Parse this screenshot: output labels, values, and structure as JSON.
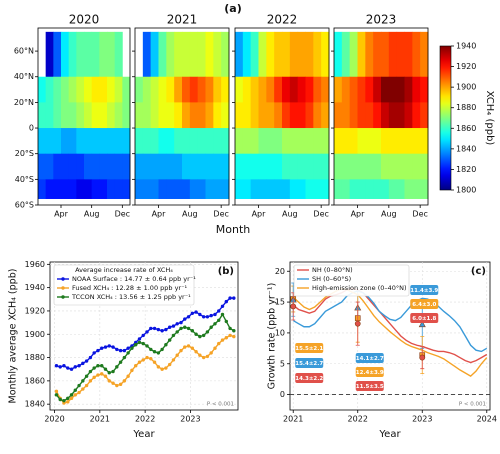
{
  "chart_data": [
    {
      "type": "heatmap",
      "title": "(a)",
      "x_label": "Month",
      "colormap": "jet",
      "x_edges": [
        1,
        2,
        3,
        4,
        5,
        6,
        7,
        8,
        9,
        10,
        11,
        12,
        13
      ],
      "y_edges": [
        75,
        40,
        20,
        0,
        -20,
        -40,
        -55
      ],
      "xlim": [
        1,
        13
      ],
      "ylim": [
        -60,
        78
      ],
      "xticks": [
        {
          "value": 4,
          "label": "Apr"
        },
        {
          "value": 8,
          "label": "Aug"
        },
        {
          "value": 12,
          "label": "Dec"
        }
      ],
      "yticks": [
        {
          "value": 60,
          "label": "60°N"
        },
        {
          "value": 40,
          "label": "40°N"
        },
        {
          "value": 20,
          "label": "20°N"
        },
        {
          "value": 0,
          "label": "0"
        },
        {
          "value": -20,
          "label": "20°S"
        },
        {
          "value": -40,
          "label": "40°S"
        },
        {
          "value": -60,
          "label": "60°S"
        }
      ],
      "clim": [
        1800,
        1940
      ],
      "cticks": [
        1800,
        1820,
        1840,
        1860,
        1880,
        1900,
        1920,
        1940
      ],
      "colorbar_label": "XCH₄ (ppb)",
      "panels": [
        {
          "title": "2020",
          "values": [
            [
              null,
              1810,
              1830,
              1850,
              1860,
              1865,
              1865,
              1865,
              1870,
              1870,
              1865,
              null
            ],
            [
              1855,
              1860,
              1865,
              1870,
              1875,
              1880,
              1885,
              1890,
              1890,
              1885,
              1880,
              1870
            ],
            [
              1860,
              1860,
              1865,
              1870,
              1870,
              1875,
              1880,
              1885,
              1885,
              1880,
              1875,
              1870
            ],
            [
              1845,
              1845,
              1845,
              1840,
              1840,
              1845,
              1845,
              1845,
              1845,
              1845,
              1845,
              1845
            ],
            [
              1830,
              1830,
              1825,
              1825,
              1825,
              1825,
              1830,
              1830,
              1830,
              1830,
              1830,
              1830
            ],
            [
              1825,
              1820,
              1820,
              1820,
              1820,
              1815,
              1815,
              1820,
              1820,
              1825,
              1825,
              1825
            ]
          ]
        },
        {
          "title": "2021",
          "values": [
            [
              null,
              1830,
              1845,
              1865,
              1875,
              1880,
              1880,
              1880,
              1880,
              1885,
              1880,
              1875
            ],
            [
              1870,
              1875,
              1880,
              1885,
              1890,
              1900,
              1910,
              1915,
              1910,
              1905,
              1895,
              1890
            ],
            [
              1875,
              1875,
              1880,
              1885,
              1885,
              1890,
              1900,
              1905,
              1905,
              1900,
              1890,
              1885
            ],
            [
              1860,
              1860,
              1860,
              1855,
              1855,
              1860,
              1860,
              1860,
              1860,
              1860,
              1860,
              1860
            ],
            [
              1840,
              1840,
              1840,
              1840,
              1840,
              1840,
              1845,
              1845,
              1845,
              1845,
              1845,
              1845
            ],
            [
              1835,
              1835,
              1835,
              1830,
              1830,
              1830,
              1830,
              1835,
              1835,
              1840,
              1840,
              1840
            ]
          ]
        },
        {
          "title": "2022",
          "values": [
            [
              1840,
              1850,
              1860,
              1880,
              1890,
              1895,
              1895,
              1900,
              1900,
              1900,
              1895,
              1890
            ],
            [
              1885,
              1890,
              1895,
              1900,
              1905,
              1915,
              1925,
              1930,
              1925,
              1920,
              1910,
              1905
            ],
            [
              1890,
              1890,
              1895,
              1900,
              1900,
              1905,
              1915,
              1920,
              1920,
              1915,
              1905,
              1900
            ],
            [
              1875,
              1875,
              1875,
              1870,
              1870,
              1870,
              1875,
              1875,
              1875,
              1875,
              1875,
              1875
            ],
            [
              1855,
              1855,
              1855,
              1855,
              1855,
              1855,
              1860,
              1860,
              1860,
              1860,
              1860,
              1860
            ],
            [
              1850,
              1850,
              1845,
              1845,
              1845,
              1845,
              1845,
              1850,
              1850,
              1855,
              1855,
              1855
            ]
          ]
        },
        {
          "title": "2023",
          "values": [
            [
              1855,
              1865,
              1875,
              1895,
              1905,
              1910,
              1910,
              1915,
              1915,
              1915,
              1910,
              1905
            ],
            [
              1900,
              1905,
              1910,
              1915,
              1920,
              1930,
              1940,
              1940,
              1940,
              1935,
              1925,
              1920
            ],
            [
              1905,
              1905,
              1910,
              1915,
              1915,
              1920,
              1930,
              1935,
              1935,
              1930,
              1920,
              1915
            ],
            [
              1890,
              1890,
              1890,
              1885,
              1885,
              1885,
              1890,
              1890,
              1890,
              1890,
              1890,
              1890
            ],
            [
              1870,
              1870,
              1870,
              1870,
              1870,
              1870,
              1875,
              1875,
              1875,
              1875,
              1875,
              1875
            ],
            [
              1865,
              1865,
              1860,
              1860,
              1860,
              1860,
              1860,
              1865,
              1865,
              1870,
              1870,
              1870
            ]
          ]
        }
      ]
    },
    {
      "type": "line",
      "title": "(b)",
      "x_label": "Year",
      "y_label": "Monthly average XCH₄ (ppb)",
      "legend_title": "Average increase rate of XCH₄",
      "annotation": "P < 0.001",
      "grid": true,
      "xlim": [
        2019.9,
        2024.05
      ],
      "ylim": [
        1835,
        1962
      ],
      "xticks": [
        2020,
        2021,
        2022,
        2023
      ],
      "yticks": [
        1840,
        1860,
        1880,
        1900,
        1920,
        1940,
        1960
      ],
      "x": [
        2020.042,
        2020.125,
        2020.208,
        2020.292,
        2020.375,
        2020.458,
        2020.542,
        2020.625,
        2020.708,
        2020.792,
        2020.875,
        2020.958,
        2021.042,
        2021.125,
        2021.208,
        2021.292,
        2021.375,
        2021.458,
        2021.542,
        2021.625,
        2021.708,
        2021.792,
        2021.875,
        2021.958,
        2022.042,
        2022.125,
        2022.208,
        2022.292,
        2022.375,
        2022.458,
        2022.542,
        2022.625,
        2022.708,
        2022.792,
        2022.875,
        2022.958,
        2023.042,
        2023.125,
        2023.208,
        2023.292,
        2023.375,
        2023.458,
        2023.542,
        2023.625,
        2023.708,
        2023.792,
        2023.875,
        2023.958
      ],
      "series": [
        {
          "name": "NOAA Surface : 14.77 ± 0.64 ppb yr⁻¹",
          "color": "#0a14e0",
          "marker": "o",
          "values": [
            1873,
            1872,
            1873,
            1871,
            1870,
            1872,
            1873,
            1875,
            1877,
            1880,
            1884,
            1886,
            1888,
            1889,
            1890,
            1889,
            1887,
            1886,
            1886,
            1888,
            1890,
            1893,
            1896,
            1899,
            1902,
            1905,
            1905,
            1904,
            1903,
            1904,
            1906,
            1907,
            1909,
            1910,
            1913,
            1915,
            1918,
            1919,
            1917,
            1915,
            1915,
            1916,
            1917,
            1920,
            1924,
            1928,
            1931,
            1931
          ]
        },
        {
          "name": "Fused XCH₄ : 12.28 ± 1.00 ppb yr⁻¹",
          "color": "#f5a327",
          "marker": "o",
          "values": [
            1851,
            1845,
            1841,
            1842,
            1845,
            1848,
            1850,
            1853,
            1856,
            1860,
            1863,
            1865,
            1866,
            1864,
            1860,
            1858,
            1856,
            1857,
            1860,
            1864,
            1869,
            1873,
            1876,
            1878,
            1880,
            1879,
            1876,
            1872,
            1870,
            1871,
            1874,
            1878,
            1882,
            1886,
            1889,
            1890,
            1888,
            1885,
            1882,
            1880,
            1881,
            1884,
            1888,
            1892,
            1895,
            1897,
            1899,
            1898
          ]
        },
        {
          "name": "TCCON XCH₄ : 13.56 ± 1.25 ppb yr⁻¹",
          "color": "#1e7a1e",
          "marker": "o",
          "values": [
            1848,
            1844,
            1843,
            1845,
            1848,
            1852,
            1856,
            1860,
            1864,
            1868,
            1871,
            1873,
            1873,
            1870,
            1867,
            1868,
            1872,
            1876,
            1880,
            1884,
            1888,
            1891,
            1893,
            1892,
            1890,
            1887,
            1885,
            1884,
            1887,
            1891,
            1895,
            1899,
            1902,
            1905,
            1906,
            1905,
            1903,
            1900,
            1898,
            1899,
            1902,
            1906,
            1909,
            1912,
            1917,
            1911,
            1905,
            1903
          ]
        }
      ]
    },
    {
      "type": "line",
      "title": "(c)",
      "x_label": "Year",
      "y_label": "Growth rate (ppb yr⁻¹)",
      "annotation": "P < 0.001",
      "grid": true,
      "reference_line": 0,
      "xlim": [
        2020.95,
        2024.05
      ],
      "ylim": [
        -2.5,
        21.5
      ],
      "xticks": [
        2021,
        2022,
        2023,
        2024
      ],
      "yticks": [
        0,
        5,
        10,
        15,
        20
      ],
      "x": [
        2021,
        2021.083,
        2021.167,
        2021.25,
        2021.333,
        2021.417,
        2021.5,
        2021.583,
        2021.667,
        2021.75,
        2021.833,
        2021.917,
        2022,
        2022.083,
        2022.167,
        2022.25,
        2022.333,
        2022.417,
        2022.5,
        2022.583,
        2022.667,
        2022.75,
        2022.833,
        2022.917,
        2023,
        2023.083,
        2023.167,
        2023.25,
        2023.333,
        2023.417,
        2023.5,
        2023.583,
        2023.667,
        2023.75,
        2023.833,
        2023.917,
        2024
      ],
      "series": [
        {
          "name": "NH (0–80°N)",
          "color": "#e0504a",
          "values": [
            14.5,
            13.8,
            13.5,
            13.2,
            13.5,
            14.5,
            15.5,
            16,
            16.2,
            16.5,
            17,
            17.2,
            17,
            16.5,
            15.5,
            14.5,
            13.5,
            12.5,
            11.5,
            10.5,
            9.5,
            8.8,
            8.3,
            8,
            7.8,
            7.5,
            7.2,
            7,
            7,
            6.8,
            6.5,
            6,
            5.5,
            5.2,
            5.5,
            6,
            6.5
          ]
        },
        {
          "name": "SH (0–60°S)",
          "color": "#3a9ad9",
          "values": [
            12,
            11.5,
            11,
            11,
            11.5,
            12.5,
            13.5,
            14,
            14.5,
            15,
            16,
            16.5,
            16.8,
            16.5,
            15.8,
            14.8,
            13.5,
            12.8,
            12.2,
            12,
            12.5,
            13.5,
            14.5,
            15.2,
            15.6,
            15.5,
            15,
            14.3,
            13.5,
            12.8,
            12,
            11,
            9.5,
            8,
            7.2,
            7,
            7.5
          ]
        },
        {
          "name": "High-emission zone (0–40°N)",
          "color": "#f5a327",
          "values": [
            15.8,
            15,
            14.2,
            13.8,
            14.2,
            15,
            15.8,
            16.3,
            16.8,
            17.2,
            17,
            16.6,
            16.2,
            15.2,
            14,
            12.8,
            11.8,
            11,
            10.2,
            9.5,
            8.8,
            8.2,
            7.8,
            7.5,
            7.2,
            6.8,
            6.5,
            6.2,
            5.8,
            5.2,
            4.6,
            4,
            3.5,
            3,
            3.8,
            5,
            6
          ]
        }
      ],
      "markers": [
        {
          "x": 2021,
          "y": 15.5,
          "err": 2.1,
          "label": "15.5±2.1",
          "color": "#f5a327",
          "shape": "square"
        },
        {
          "x": 2021,
          "y": 15.4,
          "err": 2.7,
          "label": "15.4±2.7",
          "color": "#3a9ad9",
          "shape": "triangle"
        },
        {
          "x": 2021,
          "y": 14.3,
          "err": 2.2,
          "label": "14.3±2.2",
          "color": "#e0504a",
          "shape": "circle"
        },
        {
          "x": 2022,
          "y": 14.1,
          "err": 2.7,
          "label": "14.1±2.7",
          "color": "#3a9ad9",
          "shape": "triangle"
        },
        {
          "x": 2022,
          "y": 12.4,
          "err": 3.9,
          "label": "12.4±3.9",
          "color": "#f5a327",
          "shape": "square"
        },
        {
          "x": 2022,
          "y": 11.5,
          "err": 3.5,
          "label": "11.5±3.5",
          "color": "#e0504a",
          "shape": "circle"
        },
        {
          "x": 2023,
          "y": 11.4,
          "err": 3.9,
          "label": "11.4±3.9",
          "color": "#3a9ad9",
          "shape": "triangle"
        },
        {
          "x": 2023,
          "y": 6.4,
          "err": 3.0,
          "label": "6.4±3.0",
          "color": "#f5a327",
          "shape": "square"
        },
        {
          "x": 2023,
          "y": 6.0,
          "err": 1.8,
          "label": "6.0±1.8",
          "color": "#e0504a",
          "shape": "circle"
        }
      ]
    }
  ]
}
